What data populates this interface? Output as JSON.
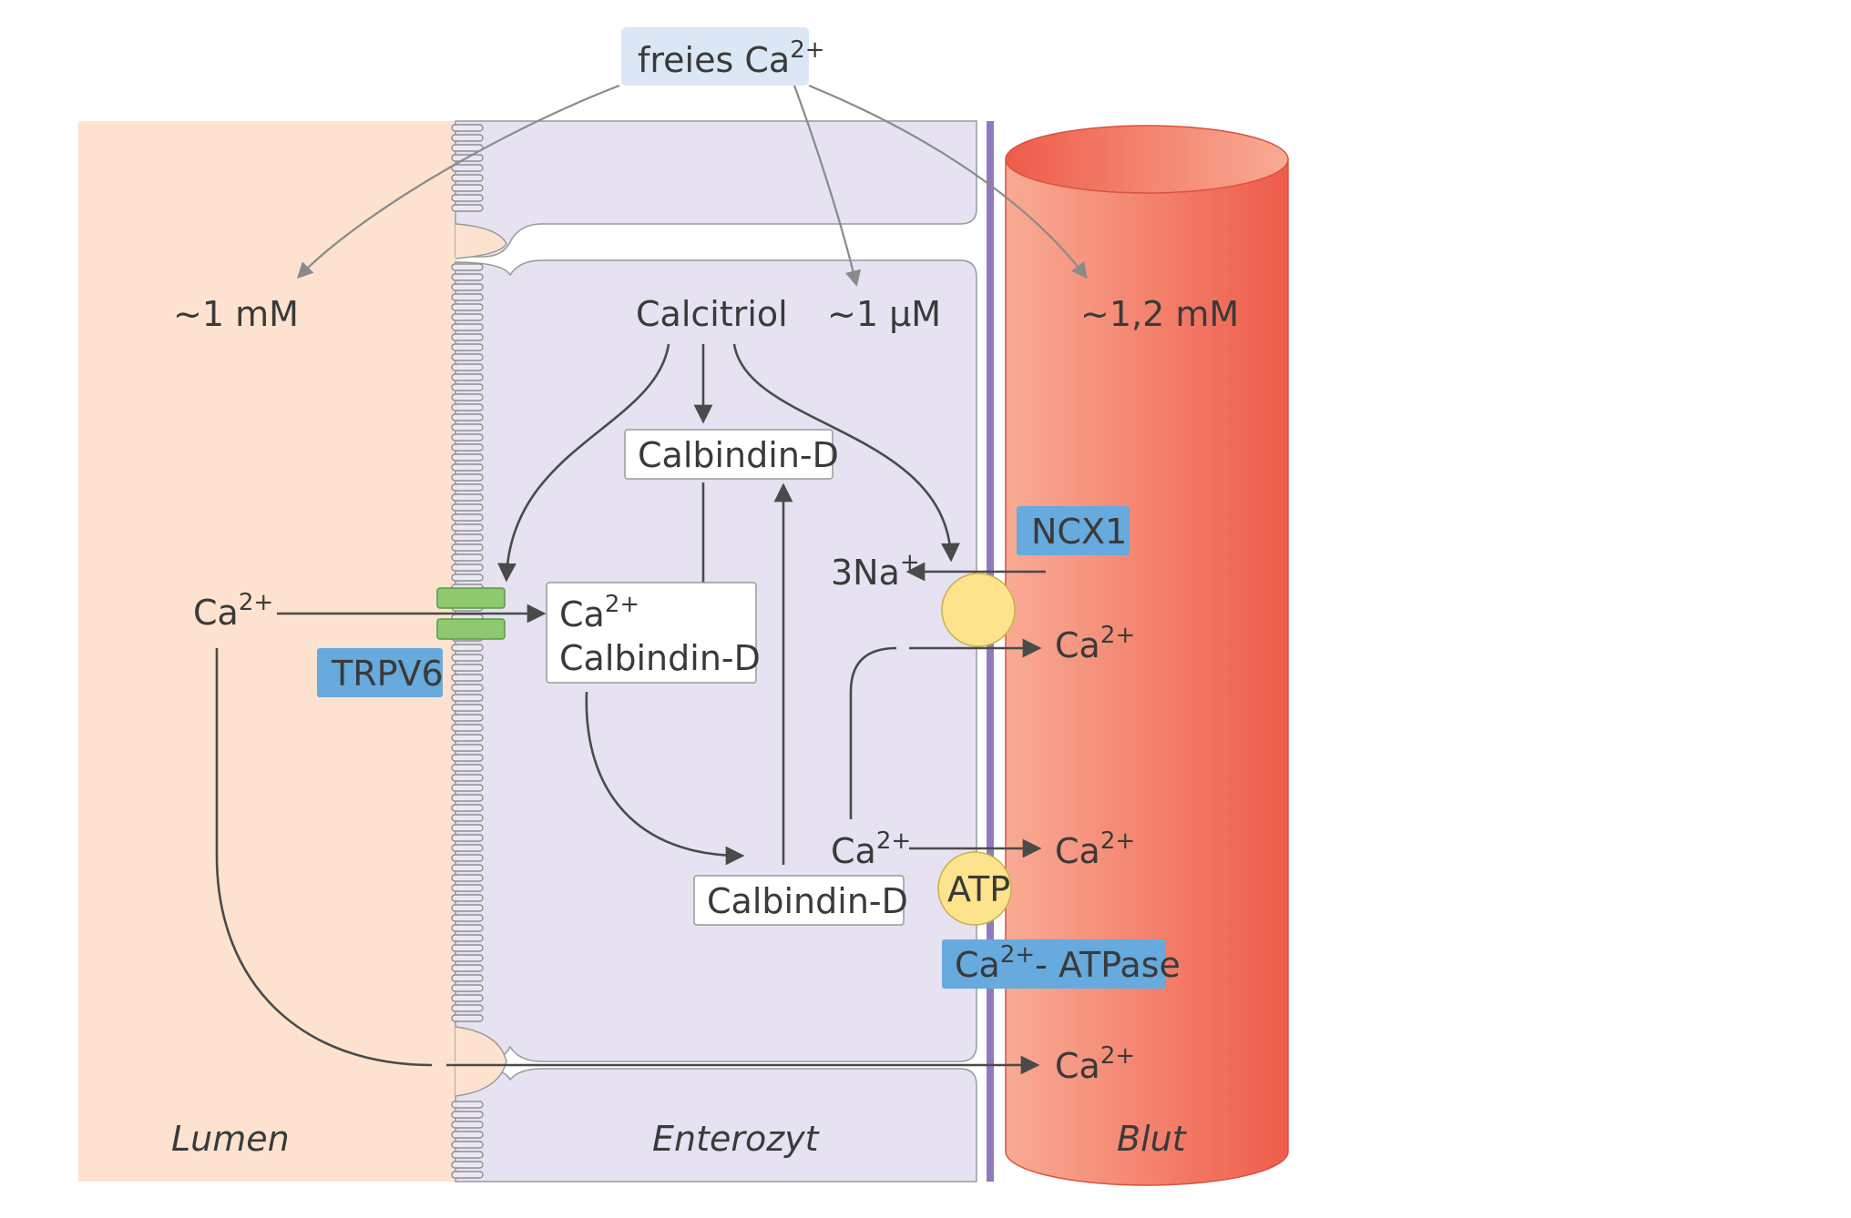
{
  "title": {
    "prefix": "freies Ca",
    "sup": "2+"
  },
  "concentrations": {
    "lumen": "~1 mM",
    "cell": "~1 µM",
    "blood": "~1,2 mM"
  },
  "compartments": {
    "lumen": "Lumen",
    "cell": "Enterozyt",
    "blood": "Blut"
  },
  "calcitriol": "Calcitriol",
  "calbindin": "Calbindin-D",
  "ca": {
    "base": "Ca",
    "sup": "2+"
  },
  "na": {
    "base": "3Na",
    "sup": "+"
  },
  "transporters": {
    "trpv6": "TRPV6",
    "ncx1": "NCX1",
    "atp": "ATP",
    "atpase_prefix": "Ca",
    "atpase_sup": "2+",
    "atpase_suffix": "- ATPase"
  },
  "colors": {
    "lumen": "#fde3cf",
    "cell": "#e6e2f1",
    "membrane": "#8d7bbd",
    "blood_dark": "#ee5c4a",
    "blood_light": "#f9ab94",
    "tag": "#67aadd",
    "channel": "#8ec96f",
    "pump": "#fde38c"
  }
}
